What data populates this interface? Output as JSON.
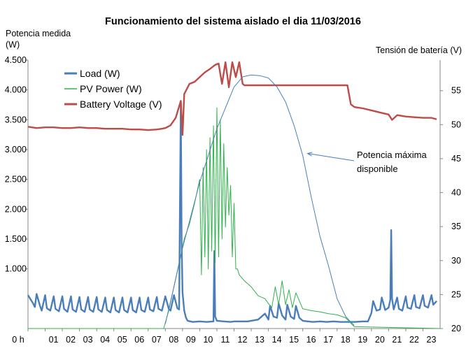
{
  "chart_data": {
    "type": "line",
    "title": "Funcionamiento del sistema aislado el dia 11/03/2016",
    "ylabel": "Potencia medida (W)",
    "y2label": "Tensión de batería (V)",
    "xlabel": "",
    "xlim": [
      0,
      24
    ],
    "ylim": [
      0,
      4500
    ],
    "y2lim": [
      20,
      59.5
    ],
    "x_tick_labels": [
      "0 h",
      "01",
      "02",
      "03",
      "04",
      "05",
      "06",
      "07",
      "08",
      "09",
      "10",
      "11",
      "12",
      "13",
      "14",
      "15",
      "16",
      "17",
      "18",
      "19",
      "20",
      "21",
      "22",
      "23"
    ],
    "y_tick_labels": [
      "1.000",
      "1.500",
      "2.000",
      "2.500",
      "3.000",
      "3.500",
      "4.000",
      "4.500"
    ],
    "y_ticks": [
      1000,
      1500,
      2000,
      2500,
      3000,
      3500,
      4000,
      4500
    ],
    "y2_ticks": [
      20,
      25,
      30,
      35,
      40,
      45,
      50,
      55
    ],
    "y2_tick_labels": [
      "20",
      "25",
      "30",
      "35",
      "40",
      "45",
      "50",
      "55"
    ],
    "legend_position": "top-left",
    "series": [
      {
        "name": "Load (W)",
        "color": "#4A7EBB",
        "axis": "left",
        "x": [
          0,
          0.3,
          0.4,
          0.5,
          0.7,
          0.8,
          1.0,
          1.1,
          1.3,
          1.5,
          1.6,
          1.8,
          2.0,
          2.1,
          2.3,
          2.5,
          2.6,
          2.8,
          3.0,
          3.1,
          3.3,
          3.5,
          3.6,
          3.8,
          4.0,
          4.1,
          4.3,
          4.5,
          4.6,
          4.8,
          5.0,
          5.1,
          5.3,
          5.5,
          5.6,
          5.8,
          6.0,
          6.1,
          6.3,
          6.5,
          6.6,
          6.8,
          7.0,
          7.1,
          7.3,
          7.5,
          7.6,
          7.8,
          8.0,
          8.2,
          8.3,
          8.5,
          8.7,
          8.8,
          8.9,
          8.95,
          9.0,
          9.1,
          9.2,
          9.3,
          9.6,
          10.0,
          10.4,
          10.8,
          10.85,
          10.9,
          11.0,
          11.4,
          11.8,
          12.0,
          12.4,
          12.8,
          13.0,
          13.4,
          13.8,
          14.0,
          14.1,
          14.3,
          14.5,
          14.6,
          14.8,
          15.0,
          15.1,
          15.3,
          15.5,
          15.6,
          15.8,
          16.0,
          16.3,
          16.6,
          17.0,
          17.4,
          17.8,
          18.2,
          18.6,
          19.0,
          19.5,
          19.8,
          20.0,
          20.1,
          20.3,
          20.5,
          20.6,
          20.8,
          21.0,
          21.1,
          21.15,
          21.2,
          21.3,
          21.5,
          21.6,
          21.8,
          22.0,
          22.1,
          22.3,
          22.5,
          22.6,
          22.8,
          23.0,
          23.1,
          23.3,
          23.5,
          23.6,
          23.8
        ],
        "values": [
          560,
          420,
          360,
          580,
          380,
          300,
          560,
          340,
          300,
          540,
          330,
          290,
          540,
          330,
          280,
          540,
          320,
          280,
          530,
          320,
          280,
          530,
          320,
          280,
          530,
          320,
          280,
          520,
          310,
          270,
          520,
          310,
          270,
          520,
          310,
          270,
          520,
          310,
          270,
          520,
          310,
          280,
          520,
          320,
          290,
          530,
          330,
          300,
          540,
          330,
          300,
          560,
          340,
          320,
          3800,
          1400,
          600,
          300,
          180,
          130,
          110,
          120,
          110,
          120,
          1300,
          200,
          130,
          120,
          110,
          120,
          120,
          120,
          130,
          150,
          250,
          150,
          380,
          200,
          180,
          420,
          220,
          150,
          400,
          200,
          160,
          380,
          180,
          130,
          120,
          110,
          120,
          110,
          120,
          110,
          110,
          110,
          120,
          120,
          260,
          460,
          300,
          320,
          520,
          310,
          350,
          480,
          1650,
          500,
          320,
          520,
          330,
          300,
          540,
          350,
          330,
          560,
          360,
          340,
          560,
          380,
          350,
          560,
          400,
          460
        ]
      },
      {
        "name": "PV Power (W)",
        "color": "#2EB24B",
        "axis": "left",
        "x": [
          0,
          7.9,
          8.2,
          8.5,
          8.8,
          9.1,
          9.4,
          9.7,
          10.0,
          10.1,
          10.2,
          10.3,
          10.4,
          10.5,
          10.6,
          10.7,
          10.8,
          10.9,
          11.0,
          11.1,
          11.2,
          11.3,
          11.4,
          11.5,
          11.6,
          11.7,
          11.8,
          11.9,
          12.0,
          12.1,
          12.2,
          12.3,
          12.6,
          13.0,
          13.4,
          13.8,
          14.0,
          14.2,
          14.4,
          14.6,
          14.8,
          15.0,
          15.2,
          15.4,
          15.6,
          16.0,
          16.5,
          17.0,
          17.5,
          18.0,
          18.5,
          19.0,
          24
        ],
        "values": [
          0,
          0,
          300,
          700,
          1100,
          1500,
          1750,
          2100,
          2500,
          900,
          2700,
          1200,
          3000,
          1000,
          3200,
          1300,
          3400,
          1100,
          3700,
          1200,
          3500,
          1500,
          3100,
          1700,
          2700,
          1900,
          2400,
          1200,
          2100,
          1000,
          1000,
          900,
          800,
          700,
          550,
          500,
          420,
          350,
          700,
          400,
          800,
          400,
          650,
          350,
          600,
          330,
          300,
          280,
          250,
          230,
          180,
          30,
          0
        ]
      },
      {
        "name": "Battery Voltage (V)",
        "color": "#BE4B48",
        "axis": "right",
        "x": [
          0,
          0.5,
          1.0,
          1.5,
          2.0,
          2.5,
          3.0,
          3.5,
          4.0,
          4.5,
          5.0,
          5.5,
          6.0,
          6.5,
          7.0,
          7.5,
          7.8,
          8.0,
          8.3,
          8.6,
          8.9,
          9.0,
          9.1,
          9.4,
          9.7,
          10.0,
          10.3,
          10.6,
          10.9,
          11.1,
          11.3,
          11.5,
          11.7,
          11.9,
          12.1,
          12.3,
          12.5,
          12.6,
          13.0,
          14.0,
          15.0,
          16.0,
          17.0,
          18.0,
          18.6,
          18.8,
          19.0,
          19.5,
          20.0,
          20.5,
          21.0,
          21.2,
          21.5,
          22.0,
          22.5,
          23.0,
          23.5,
          23.8
        ],
        "values": [
          49.7,
          49.5,
          49.6,
          49.6,
          49.5,
          49.5,
          49.6,
          49.5,
          49.5,
          49.4,
          49.4,
          49.4,
          49.3,
          49.3,
          49.2,
          49.3,
          49.4,
          49.5,
          49.9,
          51.0,
          53.5,
          48.5,
          54.5,
          56.0,
          56.3,
          57.0,
          57.7,
          58.2,
          58.8,
          59.0,
          56.0,
          59.2,
          55.5,
          59.2,
          57.0,
          59.2,
          56.0,
          55.8,
          55.8,
          55.8,
          55.8,
          55.8,
          55.8,
          55.8,
          55.8,
          53.0,
          52.6,
          52.4,
          52.1,
          51.8,
          51.5,
          50.7,
          51.4,
          51.2,
          51.1,
          51.0,
          51.0,
          50.8
        ]
      },
      {
        "name": "Potencia máxima disponible",
        "color": "#4A7EBB",
        "axis": "left",
        "x": [
          8.0,
          8.5,
          9.0,
          9.5,
          10.0,
          10.5,
          11.0,
          11.5,
          12.0,
          12.5,
          13.0,
          13.5,
          14.0,
          14.5,
          15.0,
          15.5,
          16.0,
          16.5,
          17.0,
          17.5,
          18.0,
          18.5,
          19.0
        ],
        "values": [
          80,
          700,
          1350,
          1900,
          2450,
          2900,
          3350,
          3700,
          4050,
          4220,
          4250,
          4240,
          4200,
          4050,
          3800,
          3400,
          2900,
          2200,
          1550,
          1050,
          500,
          200,
          50
        ]
      }
    ],
    "annotations": [
      {
        "text_lines": [
          "Potencia máxima",
          "disponible"
        ],
        "points_to": [
          16.2,
          2900
        ]
      }
    ]
  }
}
